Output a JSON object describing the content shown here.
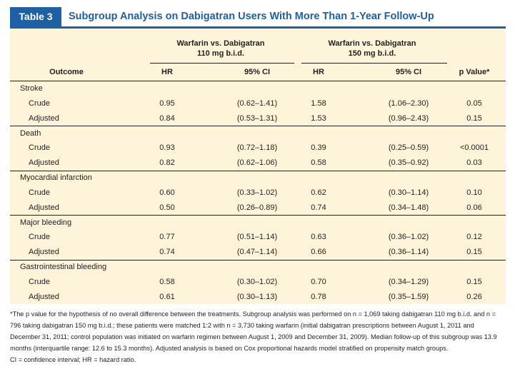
{
  "header": {
    "table_label": "Table 3",
    "title": "Subgroup Analysis on Dabigatran Users With More Than 1-Year Follow-Up"
  },
  "columns": {
    "group1": "Warfarin vs. Dabigatran\n110 mg b.i.d.",
    "group1_line1": "Warfarin vs. Dabigatran",
    "group1_line2": "110 mg b.i.d.",
    "group2_line1": "Warfarin vs. Dabigatran",
    "group2_line2": "150 mg b.i.d.",
    "outcome": "Outcome",
    "hr1": "HR",
    "ci1": "95% CI",
    "hr2": "HR",
    "ci2": "95% CI",
    "p": "p Value*"
  },
  "rows": [
    {
      "label": "Stroke",
      "type": "group"
    },
    {
      "label": "Crude",
      "type": "sub",
      "hr1": "0.95",
      "ci1": "(0.62–1.41)",
      "hr2": "1.58",
      "ci2": "(1.06–2.30)",
      "p": "0.05"
    },
    {
      "label": "Adjusted",
      "type": "sub",
      "hr1": "0.84",
      "ci1": "(0.53–1.31)",
      "hr2": "1.53",
      "ci2": "(0.96–2.43)",
      "p": "0.15"
    },
    {
      "label": "Death",
      "type": "group"
    },
    {
      "label": "Crude",
      "type": "sub",
      "hr1": "0.93",
      "ci1": "(0.72–1.18)",
      "hr2": "0.39",
      "ci2": "(0.25–0.59)",
      "p": "<0.0001"
    },
    {
      "label": "Adjusted",
      "type": "sub",
      "hr1": "0.82",
      "ci1": "(0.62–1.06)",
      "hr2": "0.58",
      "ci2": "(0.35–0.92)",
      "p": "0.03"
    },
    {
      "label": "Myocardial infarction",
      "type": "group"
    },
    {
      "label": "Crude",
      "type": "sub",
      "hr1": "0.60",
      "ci1": "(0.33–1.02)",
      "hr2": "0.62",
      "ci2": "(0.30–1.14)",
      "p": "0.10"
    },
    {
      "label": "Adjusted",
      "type": "sub",
      "hr1": "0.50",
      "ci1": "(0.26–0.89)",
      "hr2": "0.74",
      "ci2": "(0.34–1.48)",
      "p": "0.06"
    },
    {
      "label": "Major bleeding",
      "type": "group"
    },
    {
      "label": "Crude",
      "type": "sub",
      "hr1": "0.77",
      "ci1": "(0.51–1.14)",
      "hr2": "0.63",
      "ci2": "(0.36–1.02)",
      "p": "0.12"
    },
    {
      "label": "Adjusted",
      "type": "sub",
      "hr1": "0.74",
      "ci1": "(0.47–1.14)",
      "hr2": "0.66",
      "ci2": "(0.36–1.14)",
      "p": "0.15"
    },
    {
      "label": "Gastrointestinal bleeding",
      "type": "group"
    },
    {
      "label": "Crude",
      "type": "sub",
      "hr1": "0.58",
      "ci1": "(0.30–1.02)",
      "hr2": "0.70",
      "ci2": "(0.34–1.29)",
      "p": "0.15"
    },
    {
      "label": "Adjusted",
      "type": "sub",
      "hr1": "0.61",
      "ci1": "(0.30–1.13)",
      "hr2": "0.78",
      "ci2": "(0.35–1.59)",
      "p": "0.26"
    }
  ],
  "footnote": {
    "text": "*The p value for the hypothesis of no overall difference between the treatments. Subgroup analysis was performed on n = 1,069 taking dabigatran 110 mg b.i.d. and n = 796 taking dabigatran 150 mg b.i.d.; these patients were matched 1:2 with n = 3,730 taking warfarin (initial dabigatran prescriptions between August 1, 2011 and December 31, 2011; control population was initiated on warfarin regimen between August 1, 2009 and December 31, 2009). Median follow-up of this subgroup was 13.9 months (interquartile range: 12.6 to 15.3 months). Adjusted analysis is based on Cox proportional hazards model stratified on propensity match groups.",
    "abbrev": "CI = confidence interval; HR = hazard ratio."
  }
}
